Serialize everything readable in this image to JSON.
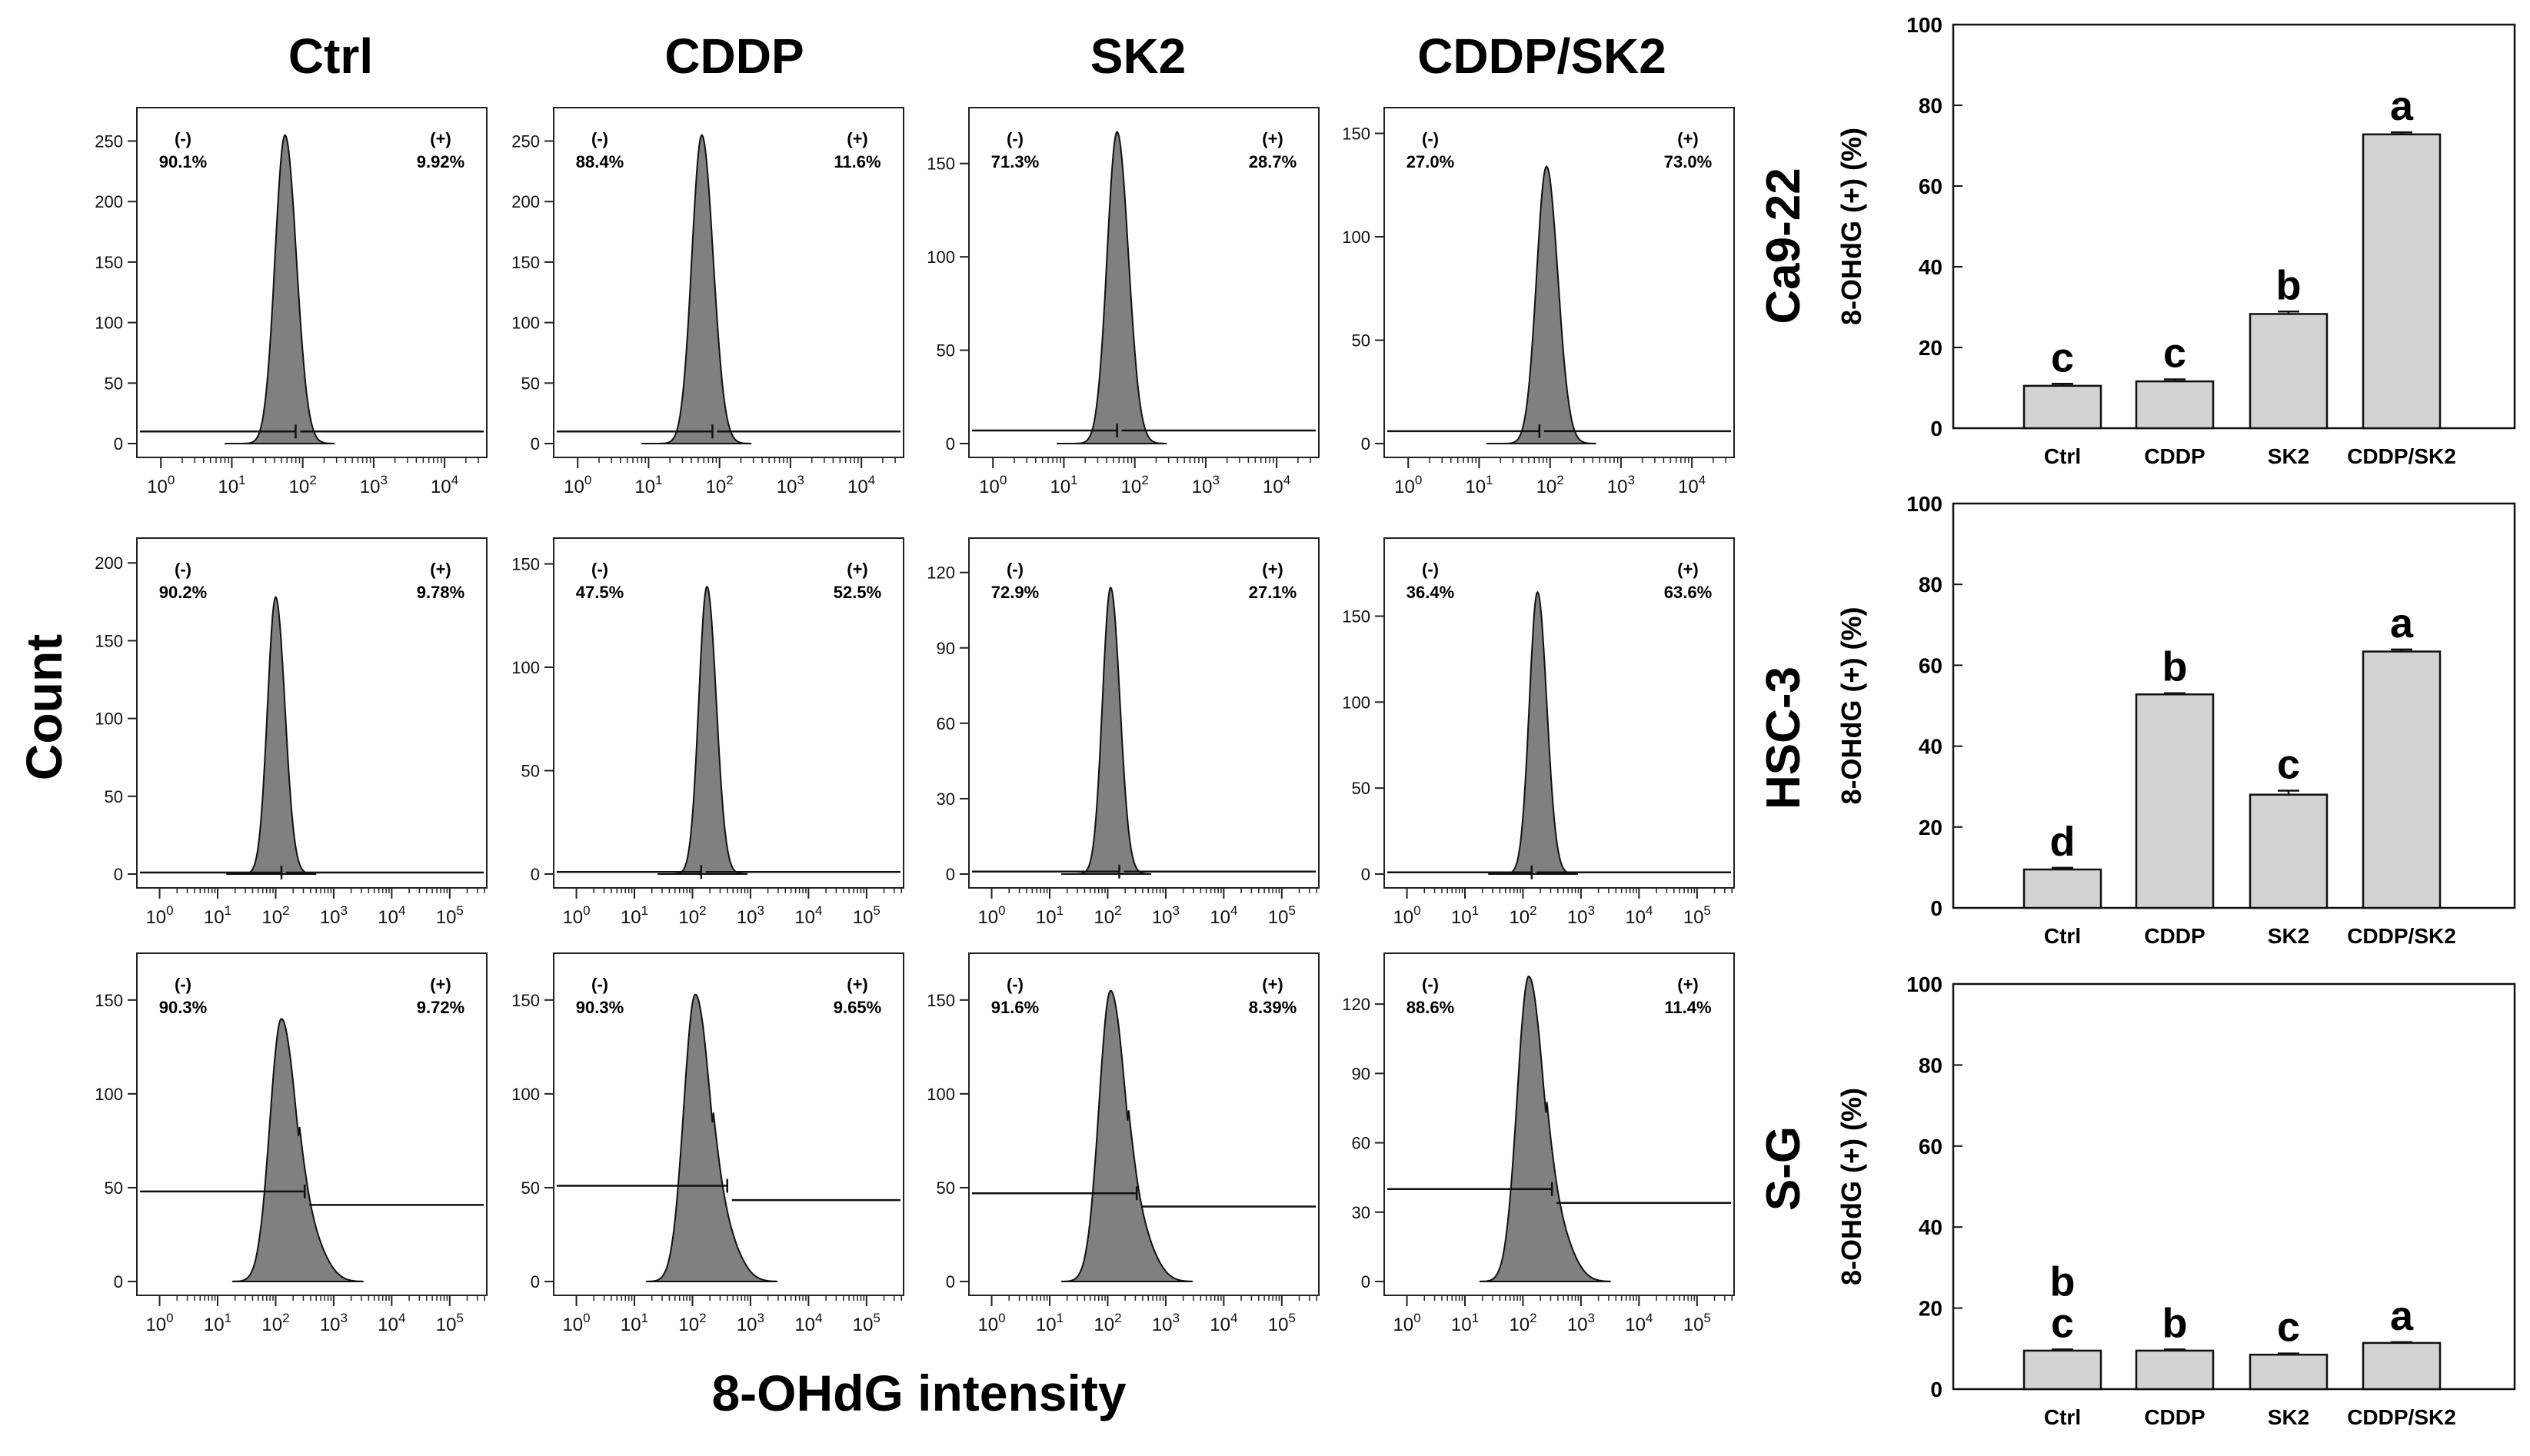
{
  "figure": {
    "column_headers": [
      "Ctrl",
      "CDDP",
      "SK2",
      "CDDP/SK2"
    ],
    "row_labels": [
      "Ca9-22",
      "HSC-3",
      "S-G"
    ],
    "y_axis_label": "Count",
    "x_axis_label": "8-OHdG intensity",
    "neg_label": "(-)",
    "pos_label": "(+)"
  },
  "chart_data": [
    {
      "type": "histogram",
      "panel": "Ca9-22 Ctrl",
      "xlabel": "8-OHdG intensity",
      "ylabel": "Count",
      "x_ticks": [
        "10^0",
        "10^1",
        "10^2",
        "10^3",
        "10^4"
      ],
      "y_ticks": [
        0,
        50,
        100,
        150,
        200,
        250
      ],
      "ylim": [
        0,
        270
      ],
      "peak_count": 255,
      "peak_log10": 1.75,
      "gate_count": 10,
      "gate_end_log10": 1.9,
      "negative_pct": "90.1%",
      "positive_pct": "9.92%"
    },
    {
      "type": "histogram",
      "panel": "Ca9-22 CDDP",
      "xlabel": "8-OHdG intensity",
      "ylabel": "Count",
      "x_ticks": [
        "10^0",
        "10^1",
        "10^2",
        "10^3",
        "10^4"
      ],
      "y_ticks": [
        0,
        50,
        100,
        150,
        200,
        250
      ],
      "ylim": [
        0,
        270
      ],
      "peak_count": 255,
      "peak_log10": 1.75,
      "gate_count": 10,
      "gate_end_log10": 1.9,
      "negative_pct": "88.4%",
      "positive_pct": "11.6%"
    },
    {
      "type": "histogram",
      "panel": "Ca9-22 SK2",
      "xlabel": "8-OHdG intensity",
      "ylabel": "Count",
      "x_ticks": [
        "10^0",
        "10^1",
        "10^2",
        "10^3",
        "10^4"
      ],
      "y_ticks": [
        0,
        50,
        100,
        150
      ],
      "ylim": [
        0,
        175
      ],
      "peak_count": 167,
      "peak_log10": 1.75,
      "gate_count": 7,
      "gate_end_log10": 1.75,
      "negative_pct": "71.3%",
      "positive_pct": "28.7%"
    },
    {
      "type": "histogram",
      "panel": "Ca9-22 CDDP/SK2",
      "xlabel": "8-OHdG intensity",
      "ylabel": "Count",
      "x_ticks": [
        "10^0",
        "10^1",
        "10^2",
        "10^3",
        "10^4"
      ],
      "y_ticks": [
        0,
        50,
        100,
        150
      ],
      "ylim": [
        0,
        158
      ],
      "peak_count": 134,
      "peak_log10": 1.95,
      "gate_count": 6,
      "gate_end_log10": 1.85,
      "negative_pct": "27.0%",
      "positive_pct": "73.0%"
    },
    {
      "type": "histogram",
      "panel": "HSC-3 Ctrl",
      "xlabel": "8-OHdG intensity",
      "ylabel": "Count",
      "x_ticks": [
        "10^0",
        "10^1",
        "10^2",
        "10^3",
        "10^4",
        "10^5"
      ],
      "y_ticks": [
        0,
        50,
        100,
        150,
        200
      ],
      "ylim": [
        0,
        210
      ],
      "peak_count": 178,
      "peak_log10": 2.0,
      "gate_count": 1,
      "gate_end_log10": 2.1,
      "negative_pct": "90.2%",
      "positive_pct": "9.78%"
    },
    {
      "type": "histogram",
      "panel": "HSC-3 CDDP",
      "xlabel": "8-OHdG intensity",
      "ylabel": "Count",
      "x_ticks": [
        "10^0",
        "10^1",
        "10^2",
        "10^3",
        "10^4",
        "10^5"
      ],
      "y_ticks": [
        0,
        50,
        100,
        150
      ],
      "ylim": [
        0,
        158
      ],
      "peak_count": 139,
      "peak_log10": 2.25,
      "gate_count": 1,
      "gate_end_log10": 2.15,
      "negative_pct": "47.5%",
      "positive_pct": "52.5%"
    },
    {
      "type": "histogram",
      "panel": "HSC-3 SK2",
      "xlabel": "8-OHdG intensity",
      "ylabel": "Count",
      "x_ticks": [
        "10^0",
        "10^1",
        "10^2",
        "10^3",
        "10^4",
        "10^5"
      ],
      "y_ticks": [
        0,
        30,
        60,
        90,
        120
      ],
      "ylim": [
        0,
        130
      ],
      "peak_count": 114,
      "peak_log10": 2.05,
      "gate_count": 1,
      "gate_end_log10": 2.2,
      "negative_pct": "72.9%",
      "positive_pct": "27.1%"
    },
    {
      "type": "histogram",
      "panel": "HSC-3 CDDP/SK2",
      "xlabel": "8-OHdG intensity",
      "ylabel": "Count",
      "x_ticks": [
        "10^0",
        "10^1",
        "10^2",
        "10^3",
        "10^4",
        "10^5"
      ],
      "y_ticks": [
        0,
        50,
        100,
        150
      ],
      "ylim": [
        0,
        190
      ],
      "peak_count": 164,
      "peak_log10": 2.25,
      "gate_count": 1,
      "gate_end_log10": 2.15,
      "negative_pct": "36.4%",
      "positive_pct": "63.6%"
    },
    {
      "type": "histogram",
      "panel": "S-G Ctrl",
      "xlabel": "8-OHdG intensity",
      "ylabel": "Count",
      "x_ticks": [
        "10^0",
        "10^1",
        "10^2",
        "10^3",
        "10^4",
        "10^5"
      ],
      "y_ticks": [
        0,
        50,
        100,
        150
      ],
      "ylim": [
        0,
        170
      ],
      "peak_count": 140,
      "peak_log10": 2.1,
      "gate_count": 48,
      "gate_end_log10": 2.5,
      "negative_pct": "90.3%",
      "positive_pct": "9.72%"
    },
    {
      "type": "histogram",
      "panel": "S-G CDDP",
      "xlabel": "8-OHdG intensity",
      "ylabel": "Count",
      "x_ticks": [
        "10^0",
        "10^1",
        "10^2",
        "10^3",
        "10^4",
        "10^5"
      ],
      "y_ticks": [
        0,
        50,
        100,
        150
      ],
      "ylim": [
        0,
        170
      ],
      "peak_count": 153,
      "peak_log10": 2.05,
      "gate_count": 51,
      "gate_end_log10": 2.6,
      "negative_pct": "90.3%",
      "positive_pct": "9.65%"
    },
    {
      "type": "histogram",
      "panel": "S-G SK2",
      "xlabel": "8-OHdG intensity",
      "ylabel": "Count",
      "x_ticks": [
        "10^0",
        "10^1",
        "10^2",
        "10^3",
        "10^4",
        "10^5"
      ],
      "y_ticks": [
        0,
        50,
        100,
        150
      ],
      "ylim": [
        0,
        170
      ],
      "peak_count": 155,
      "peak_log10": 2.05,
      "gate_count": 47,
      "gate_end_log10": 2.5,
      "negative_pct": "91.6%",
      "positive_pct": "8.39%"
    },
    {
      "type": "histogram",
      "panel": "S-G CDDP/SK2",
      "xlabel": "8-OHdG intensity",
      "ylabel": "Count",
      "x_ticks": [
        "10^0",
        "10^1",
        "10^2",
        "10^3",
        "10^4",
        "10^5"
      ],
      "y_ticks": [
        0,
        30,
        60,
        90,
        120
      ],
      "ylim": [
        0,
        138
      ],
      "peak_count": 132,
      "peak_log10": 2.1,
      "gate_count": 40,
      "gate_end_log10": 2.5,
      "negative_pct": "88.6%",
      "positive_pct": "11.4%"
    },
    {
      "type": "bar",
      "panel": "Ca9-22",
      "title": "Ca9-22",
      "categories": [
        "Ctrl",
        "CDDP",
        "SK2",
        "CDDP/SK2"
      ],
      "values": [
        10.5,
        11.6,
        28.3,
        72.8
      ],
      "errors": [
        0.5,
        0.5,
        0.6,
        0.5
      ],
      "letters": [
        "c",
        "c",
        "b",
        "a"
      ],
      "ylabel": "8-OHdG (+) (%)",
      "ylim": [
        0,
        100
      ],
      "y_ticks": [
        0,
        20,
        40,
        60,
        80,
        100
      ]
    },
    {
      "type": "bar",
      "panel": "HSC-3",
      "title": "HSC-3",
      "categories": [
        "Ctrl",
        "CDDP",
        "SK2",
        "CDDP/SK2"
      ],
      "values": [
        9.5,
        52.8,
        28.0,
        63.4
      ],
      "errors": [
        0.4,
        0.3,
        1.0,
        0.5
      ],
      "letters": [
        "d",
        "b",
        "c",
        "a"
      ],
      "ylabel": "8-OHdG (+) (%)",
      "ylim": [
        0,
        100
      ],
      "y_ticks": [
        0,
        20,
        40,
        60,
        80,
        100
      ]
    },
    {
      "type": "bar",
      "panel": "S-G",
      "title": "S-G",
      "categories": [
        "Ctrl",
        "CDDP",
        "SK2",
        "CDDP/SK2"
      ],
      "values": [
        9.5,
        9.5,
        8.5,
        11.4
      ],
      "errors": [
        0.3,
        0.3,
        0.3,
        0.2
      ],
      "letters": [
        "b\nc",
        "b",
        "c",
        "a"
      ],
      "ylabel": "8-OHdG (+) (%)",
      "ylim": [
        0,
        100
      ],
      "y_ticks": [
        0,
        20,
        40,
        60,
        80,
        100
      ]
    }
  ]
}
